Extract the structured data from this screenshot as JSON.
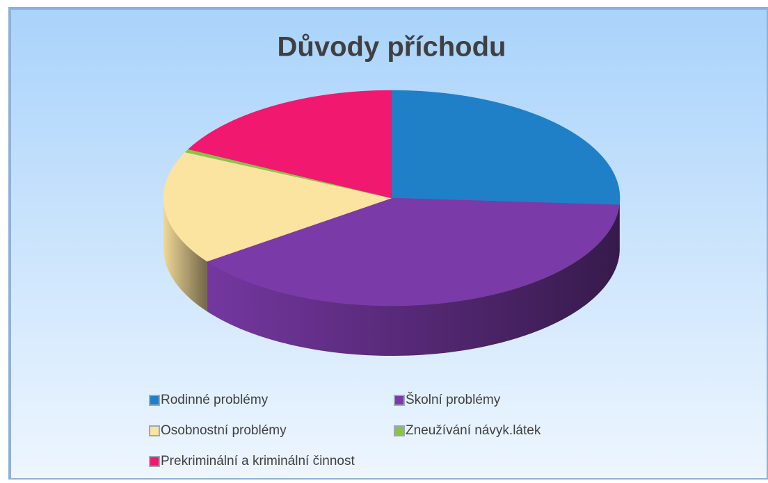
{
  "chart_data": {
    "type": "pie",
    "title": "Důvody příchodu",
    "categories": [
      "Rodinné problémy",
      "Školní  problémy",
      "Osobnostní problémy",
      "Zneužívání  návyk.látek",
      "Prekriminální  a kriminální činnost"
    ],
    "values": [
      26,
      39,
      17,
      0.5,
      17.5
    ],
    "colors": [
      "#1f80c8",
      "#7a3aa8",
      "#fbe3a0",
      "#8bc34a",
      "#f0186f"
    ]
  }
}
